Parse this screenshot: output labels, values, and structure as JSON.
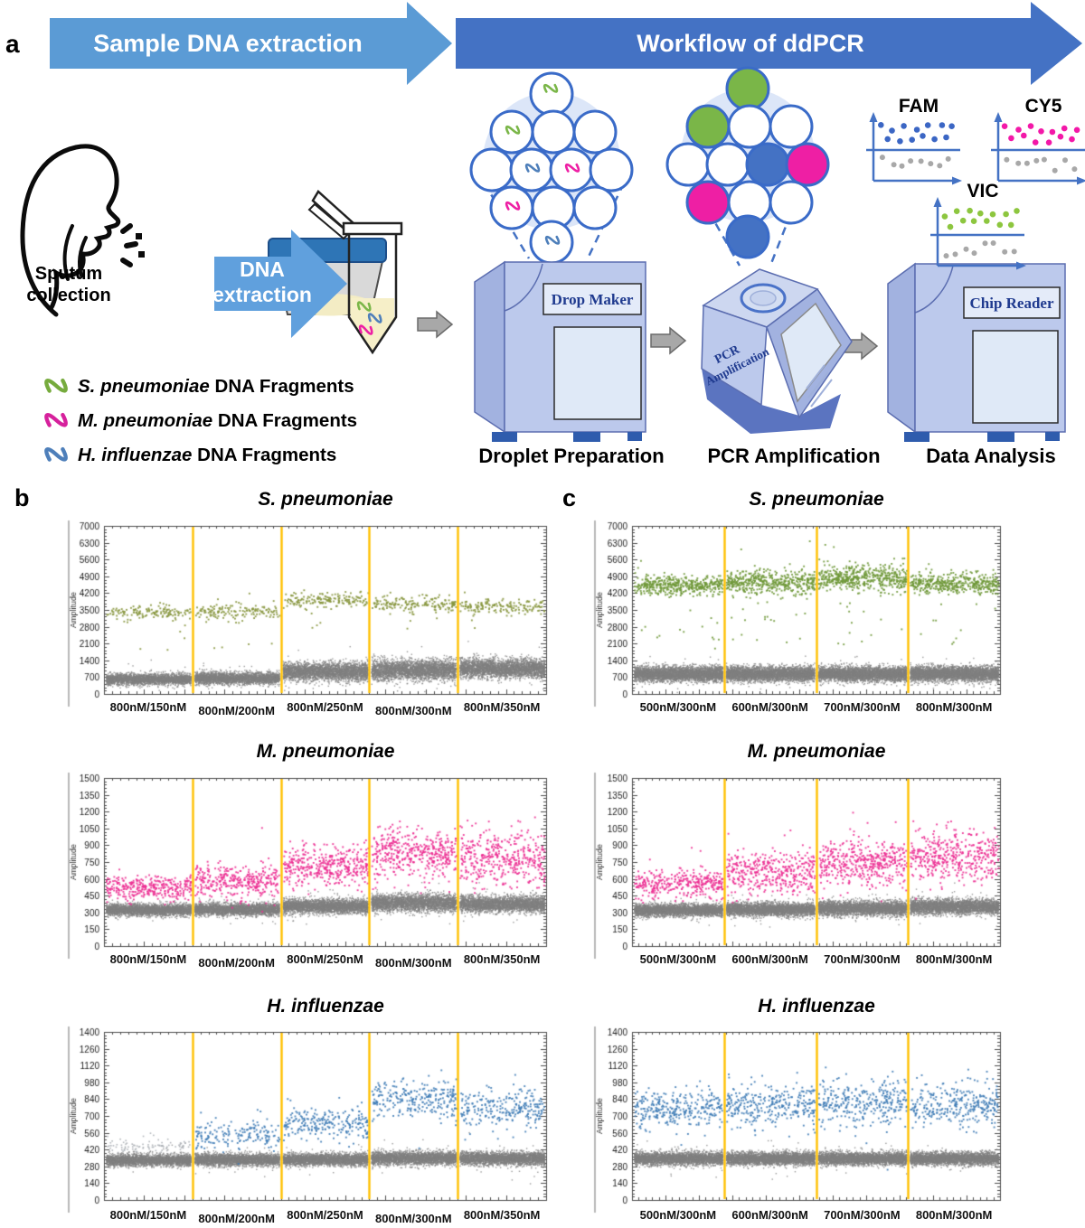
{
  "panels": {
    "a": "a",
    "b": "b",
    "c": "c"
  },
  "panel_a": {
    "banner_sample": "Sample DNA extraction",
    "banner_workflow": "Workflow of ddPCR",
    "sputum_line1": "Sputum",
    "sputum_line2": "collection",
    "dna_line1": "DNA",
    "dna_line2": "extraction",
    "legend": [
      {
        "species": "S. pneumoniae",
        "suffix": " DNA Fragments",
        "color": "#76ab3d"
      },
      {
        "species": "M. pneumoniae",
        "suffix": " DNA Fragments",
        "color": "#d6219c"
      },
      {
        "species": "H. influenzae",
        "suffix": " DNA Fragments",
        "color": "#4e7fba"
      }
    ],
    "machine_drop_maker": "Drop Maker",
    "machine_pcr_line1": "PCR",
    "machine_pcr_line2": "Amplification",
    "machine_chip_reader": "Chip Reader",
    "stage_droplet": "Droplet Preparation",
    "stage_pcr": "PCR Amplification",
    "stage_data": "Data Analysis",
    "detectors": [
      {
        "label": "FAM",
        "dot_color": "#3b66c4"
      },
      {
        "label": "CY5",
        "dot_color": "#f318a8"
      },
      {
        "label": "VIC",
        "dot_color": "#8dc63f"
      }
    ],
    "colors": {
      "banner_light": "#5b9bd5",
      "banner_dark": "#4472c4",
      "dna_arrow": "#60a0dd",
      "machine_body": "#bcc9ec",
      "machine_side": "#a2b2e0",
      "machine_top": "#cdd7f0",
      "machine_panel": "#e4ebf9",
      "machine_screen": "#dfe9f7",
      "machine_base": "#5b74c0",
      "machine_label": "#1f3a8f",
      "foot": "#2f5cad",
      "droplet_ring": "#3a6bc8",
      "droplet_bg": "#dce6f8",
      "green": "#7ab648",
      "magenta": "#ee1fa4",
      "blue": "#4472c4",
      "teal": "#4e7fba",
      "gray_arrow": "#a8a8a8",
      "gray_arrow_line": "#6b6b6b",
      "axis_blue": "#4472c4",
      "negative_dot": "#a8a8a8",
      "cup_lid": "#2e75b6",
      "cup_body": "#d9d9d9",
      "sputum": "#f3ecc4",
      "liquid": "#f6efc8"
    }
  },
  "chart_data": [
    {
      "id": "b-s-pneumoniae",
      "panel": "b",
      "type": "scatter",
      "title": "S. pneumoniae",
      "ylabel": "Amplitude",
      "ylim": [
        0,
        7000
      ],
      "ytick_step": 700,
      "segments": [
        "800nM/150nM",
        "800nM/200nM",
        "800nM/250nM",
        "800nM/300nM",
        "800nM/350nM"
      ],
      "segment_bounds": [
        0,
        0.2,
        0.4,
        0.6,
        0.8,
        1
      ],
      "divider_color": "#FFC000",
      "series": [
        {
          "name": "negative-droplets",
          "color": "#7f7f7f",
          "dot": 1.4,
          "clusters": [
            {
              "mean": 640,
              "sd": 115,
              "count": 2600
            },
            {
              "mean": 680,
              "sd": 125,
              "count": 2600
            },
            {
              "mean": 950,
              "sd": 190,
              "count": 3000
            },
            {
              "mean": 1020,
              "sd": 210,
              "count": 3000
            },
            {
              "mean": 1090,
              "sd": 200,
              "count": 3000
            }
          ]
        },
        {
          "name": "positive-droplets",
          "color": "#87963e",
          "dot": 1.9,
          "clusters": [
            {
              "mean": 3430,
              "sd": 140,
              "count": 140,
              "outliers": [
                [
                  6,
                  1800,
                  3150
                ]
              ]
            },
            {
              "mean": 3500,
              "sd": 160,
              "count": 150,
              "outliers": [
                [
                  7,
                  1800,
                  3150
                ]
              ]
            },
            {
              "mean": 3930,
              "sd": 145,
              "count": 170,
              "outliers": [
                [
                  4,
                  2600,
                  3400
                ]
              ]
            },
            {
              "mean": 3810,
              "sd": 155,
              "count": 170,
              "outliers": [
                [
                  4,
                  2500,
                  3400
                ]
              ]
            },
            {
              "mean": 3700,
              "sd": 150,
              "count": 160,
              "outliers": [
                [
                  3,
                  2700,
                  3400
                ]
              ]
            }
          ]
        }
      ]
    },
    {
      "id": "b-m-pneumoniae",
      "panel": "b",
      "type": "scatter",
      "title": "M. pneumoniae",
      "ylabel": "Amplitude",
      "ylim": [
        0,
        1500
      ],
      "ytick_step": 150,
      "segments": [
        "800nM/150nM",
        "800nM/200nM",
        "800nM/250nM",
        "800nM/300nM",
        "800nM/350nM"
      ],
      "segment_bounds": [
        0,
        0.2,
        0.4,
        0.6,
        0.8,
        1
      ],
      "divider_color": "#FFC000",
      "series": [
        {
          "name": "negative-droplets",
          "color": "#7f7f7f",
          "dot": 1.4,
          "clusters": [
            {
              "mean": 328,
              "sd": 26,
              "count": 2800
            },
            {
              "mean": 333,
              "sd": 27,
              "count": 2800
            },
            {
              "mean": 360,
              "sd": 32,
              "count": 2900
            },
            {
              "mean": 392,
              "sd": 38,
              "count": 2900
            },
            {
              "mean": 380,
              "sd": 36,
              "count": 2900
            }
          ]
        },
        {
          "name": "positive-droplets",
          "color": "#ec2f92",
          "dot": 1.9,
          "clusters": [
            {
              "mean": 530,
              "sd": 55,
              "count": 330
            },
            {
              "mean": 585,
              "sd": 75,
              "count": 340
            },
            {
              "mean": 720,
              "sd": 90,
              "count": 400
            },
            {
              "mean": 830,
              "sd": 110,
              "count": 420,
              "outliers": [
                [
                  3,
                  1000,
                  1150
                ]
              ]
            },
            {
              "mean": 780,
              "sd": 120,
              "count": 400,
              "outliers": [
                [
                  2,
                  980,
                  1100
                ]
              ]
            }
          ]
        }
      ]
    },
    {
      "id": "b-h-influenzae",
      "panel": "b",
      "type": "scatter",
      "title": "H. influenzae",
      "ylabel": "Amplitude",
      "ylim": [
        0,
        1400
      ],
      "ytick_step": 140,
      "segments": [
        "800nM/150nM",
        "800nM/200nM",
        "800nM/250nM",
        "800nM/300nM",
        "800nM/350nM"
      ],
      "segment_bounds": [
        0,
        0.2,
        0.4,
        0.6,
        0.8,
        1
      ],
      "divider_color": "#FFC000",
      "series": [
        {
          "name": "negative-droplets",
          "color": "#7f7f7f",
          "dot": 1.4,
          "clusters": [
            {
              "mean": 336,
              "sd": 24,
              "count": 2800
            },
            {
              "mean": 340,
              "sd": 25,
              "count": 2800
            },
            {
              "mean": 342,
              "sd": 25,
              "count": 2800
            },
            {
              "mean": 352,
              "sd": 27,
              "count": 2800
            },
            {
              "mean": 352,
              "sd": 27,
              "count": 2800
            }
          ]
        },
        {
          "name": "weak-positive-droplets",
          "color": "#a9adb3",
          "dot": 1.6,
          "clusters": [
            {
              "mean": 448,
              "sd": 26,
              "count": 90,
              "outliers": [
                [
                  4,
                  500,
                  570
                ]
              ]
            },
            null,
            null,
            null,
            null
          ]
        },
        {
          "name": "positive-droplets",
          "color": "#3f7cb6",
          "dot": 1.9,
          "clusters": [
            null,
            {
              "mean": 560,
              "sd": 55,
              "count": 170,
              "outliers": [
                [
                  3,
                  700,
                  760
                ]
              ]
            },
            {
              "mean": 645,
              "sd": 60,
              "count": 230,
              "outliers": [
                [
                  4,
                  800,
                  880
                ]
              ]
            },
            {
              "mean": 840,
              "sd": 80,
              "count": 260,
              "outliers": [
                [
                  3,
                  980,
                  1020
                ]
              ]
            },
            {
              "mean": 765,
              "sd": 80,
              "count": 250,
              "outliers": [
                [
                  3,
                  950,
                  1000
                ]
              ]
            }
          ]
        }
      ]
    },
    {
      "id": "c-s-pneumoniae",
      "panel": "c",
      "type": "scatter",
      "title": "S. pneumoniae",
      "ylabel": "Amplitude",
      "ylim": [
        0,
        7000
      ],
      "ytick_step": 700,
      "segments": [
        "500nM/300nM",
        "600nM/300nM",
        "700nM/300nM",
        "800nM/300nM"
      ],
      "segment_bounds": [
        0,
        0.25,
        0.5,
        0.75,
        1
      ],
      "divider_color": "#FFC000",
      "series": [
        {
          "name": "negative-droplets",
          "color": "#7f7f7f",
          "dot": 1.4,
          "clusters": [
            {
              "mean": 860,
              "sd": 150,
              "count": 3800
            },
            {
              "mean": 860,
              "sd": 150,
              "count": 3800
            },
            {
              "mean": 860,
              "sd": 150,
              "count": 3800
            },
            {
              "mean": 860,
              "sd": 150,
              "count": 3800
            }
          ]
        },
        {
          "name": "positive-droplets",
          "color": "#6f9838",
          "dot": 1.9,
          "clusters": [
            {
              "mean": 4550,
              "sd": 200,
              "count": 430,
              "outliers": [
                [
                  14,
                  1900,
                  4000
                ]
              ]
            },
            {
              "mean": 4680,
              "sd": 260,
              "count": 460,
              "outliers": [
                [
                  16,
                  1900,
                  4100
                ],
                [
                  2,
                  5900,
                  6400
                ]
              ]
            },
            {
              "mean": 4870,
              "sd": 270,
              "count": 500,
              "outliers": [
                [
                  14,
                  2000,
                  4200
                ],
                [
                  2,
                  5700,
                  6300
                ]
              ]
            },
            {
              "mean": 4620,
              "sd": 210,
              "count": 440,
              "outliers": [
                [
                  10,
                  2000,
                  4100
                ]
              ]
            }
          ]
        }
      ]
    },
    {
      "id": "c-m-pneumoniae",
      "panel": "c",
      "type": "scatter",
      "title": "M. pneumoniae",
      "ylabel": "Amplitude",
      "ylim": [
        0,
        1500
      ],
      "ytick_step": 150,
      "segments": [
        "500nM/300nM",
        "600nM/300nM",
        "700nM/300nM",
        "800nM/300nM"
      ],
      "segment_bounds": [
        0,
        0.25,
        0.5,
        0.75,
        1
      ],
      "divider_color": "#FFC000",
      "series": [
        {
          "name": "negative-droplets",
          "color": "#7f7f7f",
          "dot": 1.4,
          "clusters": [
            {
              "mean": 325,
              "sd": 27,
              "count": 3200
            },
            {
              "mean": 332,
              "sd": 29,
              "count": 3200
            },
            {
              "mean": 342,
              "sd": 32,
              "count": 3200
            },
            {
              "mean": 356,
              "sd": 33,
              "count": 3200
            }
          ]
        },
        {
          "name": "positive-droplets",
          "color": "#ec2f92",
          "dot": 1.9,
          "clusters": [
            {
              "mean": 565,
              "sd": 65,
              "count": 340,
              "outliers": [
                [
                  2,
                  850,
                  950
                ]
              ]
            },
            {
              "mean": 665,
              "sd": 95,
              "count": 390,
              "outliers": [
                [
                  3,
                  950,
                  1080
                ]
              ]
            },
            {
              "mean": 755,
              "sd": 110,
              "count": 430,
              "outliers": [
                [
                  4,
                  1000,
                  1120
                ]
              ]
            },
            {
              "mean": 815,
              "sd": 110,
              "count": 420,
              "outliers": [
                [
                  4,
                  1000,
                  1120
                ]
              ]
            }
          ]
        }
      ]
    },
    {
      "id": "c-h-influenzae",
      "panel": "c",
      "type": "scatter",
      "title": "H. influenzae",
      "ylabel": "Amplitude",
      "ylim": [
        0,
        1400
      ],
      "ytick_step": 140,
      "segments": [
        "500nM/300nM",
        "600nM/300nM",
        "700nM/300nM",
        "800nM/300nM"
      ],
      "segment_bounds": [
        0,
        0.25,
        0.5,
        0.75,
        1
      ],
      "divider_color": "#FFC000",
      "series": [
        {
          "name": "negative-droplets",
          "color": "#7f7f7f",
          "dot": 1.4,
          "clusters": [
            {
              "mean": 350,
              "sd": 26,
              "count": 3200
            },
            {
              "mean": 350,
              "sd": 26,
              "count": 3200
            },
            {
              "mean": 350,
              "sd": 26,
              "count": 3200
            },
            {
              "mean": 350,
              "sd": 26,
              "count": 3200
            }
          ]
        },
        {
          "name": "positive-droplets",
          "color": "#3f7cb6",
          "dot": 1.9,
          "clusters": [
            {
              "mean": 765,
              "sd": 75,
              "count": 300,
              "outliers": [
                [
                  5,
                  520,
                  600
                ]
              ]
            },
            {
              "mean": 790,
              "sd": 85,
              "count": 310,
              "outliers": [
                [
                  4,
                  1020,
                  1100
                ]
              ]
            },
            {
              "mean": 810,
              "sd": 90,
              "count": 310,
              "outliers": [
                [
                  4,
                  1020,
                  1120
                ]
              ]
            },
            {
              "mean": 800,
              "sd": 85,
              "count": 310,
              "outliers": [
                [
                  3,
                  1000,
                  1100
                ]
              ]
            }
          ]
        }
      ]
    }
  ]
}
